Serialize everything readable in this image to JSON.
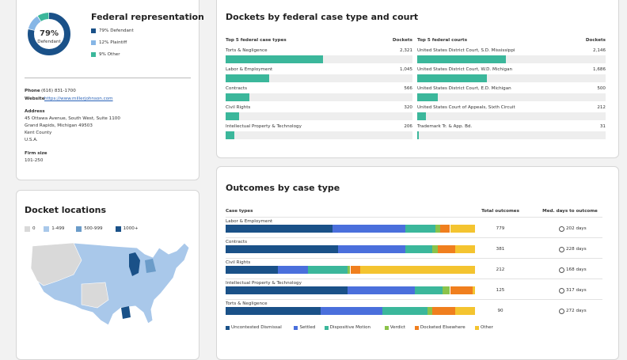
{
  "representation": {
    "title": "Federal representation",
    "center_value": "79%",
    "center_label": "Defendant",
    "segments": [
      {
        "label": "79% Defendant",
        "value": 79,
        "color": "#1a5188"
      },
      {
        "label": "12% Plaintiff",
        "value": 12,
        "color": "#86b6e6"
      },
      {
        "label": "9% Other",
        "value": 9,
        "color": "#3bb79b"
      }
    ]
  },
  "contact": {
    "phone_label": "Phone",
    "phone": "(616) 831-1700",
    "website_label": "Website",
    "website": "https://www.millerjohnson.com",
    "address_label": "Address",
    "address_lines": [
      "45 Ottawa Avenue, South West, Suite 1100",
      "Grand Rapids, Michigan 49503",
      "Kent County",
      "U.S.A."
    ],
    "firm_size_label": "Firm size",
    "firm_size": "101-250"
  },
  "locations": {
    "title": "Docket locations",
    "legend": [
      {
        "label": "0",
        "color": "#d9d9d9"
      },
      {
        "label": "1-499",
        "color": "#a9c8ea"
      },
      {
        "label": "500-999",
        "color": "#6b9cc9"
      },
      {
        "label": "1000+",
        "color": "#1a5188"
      }
    ]
  },
  "dockets": {
    "title": "Dockets by federal case type and court",
    "color": "#3bb79b",
    "lists": [
      {
        "header": "Top 5 federal case types",
        "count_header": "Dockets",
        "items": [
          {
            "label": "Torts & Negligence",
            "value": 2321,
            "value_label": "2,321"
          },
          {
            "label": "Labor & Employment",
            "value": 1045,
            "value_label": "1,045"
          },
          {
            "label": "Contracts",
            "value": 566,
            "value_label": "566"
          },
          {
            "label": "Civil Rights",
            "value": 320,
            "value_label": "320"
          },
          {
            "label": "Intellectual Property & Technology",
            "value": 206,
            "value_label": "206"
          }
        ]
      },
      {
        "header": "Top 5 federal courts",
        "count_header": "Dockets",
        "items": [
          {
            "label": "United States District Court, S.D. Mississippi",
            "value": 2146,
            "value_label": "2,146"
          },
          {
            "label": "United States District Court, W.D. Michigan",
            "value": 1686,
            "value_label": "1,686"
          },
          {
            "label": "United States District Court, E.D. Michigan",
            "value": 500,
            "value_label": "500"
          },
          {
            "label": "United States Court of Appeals, Sixth Circuit",
            "value": 212,
            "value_label": "212"
          },
          {
            "label": "Trademark Tr. & App. Bd.",
            "value": 31,
            "value_label": "31"
          }
        ]
      }
    ]
  },
  "outcomes": {
    "title": "Outcomes by case type",
    "headers": [
      "Case types",
      "Total outcomes",
      "Med. days to outcome"
    ],
    "rows": [
      {
        "case_type": "Labor & Employment",
        "total": 779,
        "med_days": "202 days"
      },
      {
        "case_type": "Contracts",
        "total": 381,
        "med_days": "228 days"
      },
      {
        "case_type": "Civil Rights",
        "total": 212,
        "med_days": "168 days"
      },
      {
        "case_type": "Intellectual Property & Technology",
        "total": 125,
        "med_days": "317 days"
      },
      {
        "case_type": "Torts & Negligence",
        "total": 90,
        "med_days": "272 days"
      }
    ],
    "series": [
      {
        "name": "Uncontested Dismissal",
        "color": "#1a5188",
        "values": [
          43,
          45,
          21,
          49,
          38
        ]
      },
      {
        "name": "Settled",
        "color": "#4a6fdc",
        "values": [
          29,
          27,
          12,
          27,
          25
        ]
      },
      {
        "name": "Dispositive Motion",
        "color": "#3bb79b",
        "values": [
          12,
          11,
          16,
          11,
          18
        ]
      },
      {
        "name": "Verdict",
        "color": "#8bc34a",
        "values": [
          2,
          2,
          1,
          3,
          2
        ]
      },
      {
        "name": "Docketed Elsewhere",
        "color": "#f07f1e",
        "values": [
          4,
          7,
          4,
          9,
          9
        ]
      },
      {
        "name": "Other",
        "color": "#f4c430",
        "values": [
          10,
          8,
          46,
          1,
          8
        ]
      }
    ]
  }
}
